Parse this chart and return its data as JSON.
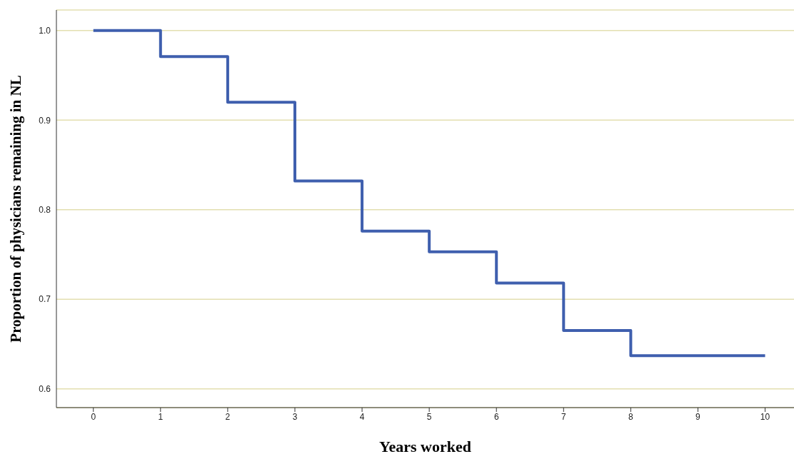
{
  "chart_data": {
    "type": "step",
    "xlabel": "Years worked",
    "ylabel": "Proportion of physicians remaining in NL",
    "x": [
      0,
      1,
      2,
      3,
      4,
      5,
      6,
      7,
      8,
      10
    ],
    "series": [
      {
        "color": "#3f5fae",
        "values": [
          1.0,
          0.971,
          0.92,
          0.832,
          0.776,
          0.753,
          0.718,
          0.665,
          0.637,
          0.637
        ]
      }
    ],
    "xlim": [
      -0.55,
      10.43
    ],
    "xticks": [
      0,
      1,
      2,
      3,
      4,
      5,
      6,
      7,
      8,
      9,
      10
    ],
    "ylim": [
      0.579,
      1.023
    ],
    "yticks": [
      {
        "value": 0.6,
        "label": "0.6"
      },
      {
        "value": 0.7,
        "label": "0.7"
      },
      {
        "value": 0.8,
        "label": "0.8"
      },
      {
        "value": 0.9,
        "label": "0.9"
      },
      {
        "value": 1,
        "label": "1.0"
      }
    ],
    "grid": "y",
    "marker": "none",
    "line_style": "solid"
  }
}
